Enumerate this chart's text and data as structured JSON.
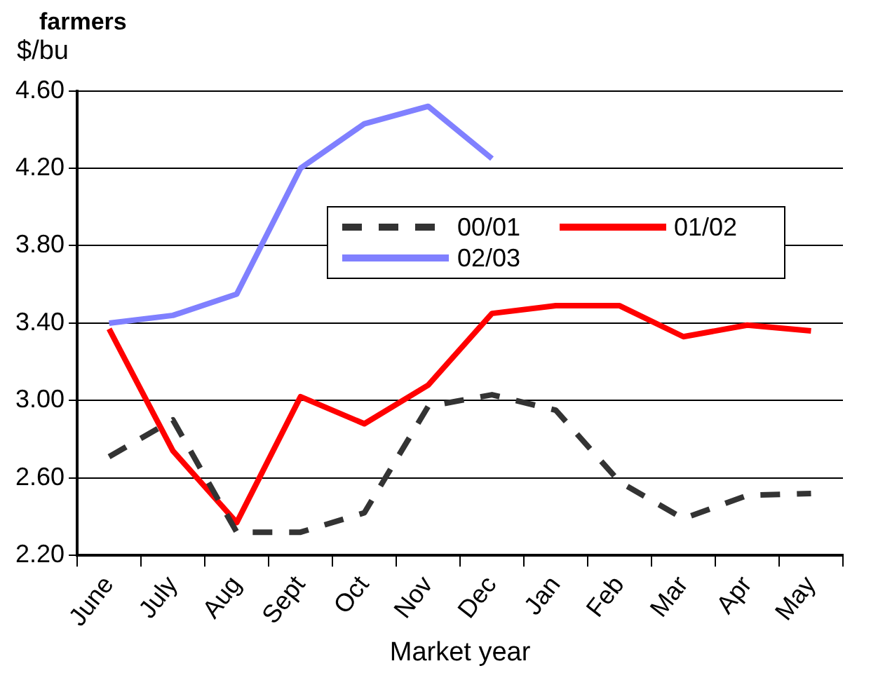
{
  "chart_data": {
    "type": "line",
    "title": "farmers",
    "ylabel": "$/bu",
    "xlabel": "Market year",
    "categories": [
      "June",
      "July",
      "Aug",
      "Sept",
      "Oct",
      "Nov",
      "Dec",
      "Jan",
      "Feb",
      "Mar",
      "Apr",
      "May"
    ],
    "series": [
      {
        "name": "00/01",
        "color": "#333333",
        "line_style": "dashed",
        "values": [
          2.71,
          2.9,
          2.32,
          2.32,
          2.42,
          2.97,
          3.03,
          2.95,
          2.58,
          2.39,
          2.51,
          2.52
        ]
      },
      {
        "name": "01/02",
        "color": "#ff0000",
        "line_style": "solid",
        "values": [
          3.37,
          2.74,
          2.37,
          3.02,
          2.88,
          3.08,
          3.45,
          3.49,
          3.49,
          3.33,
          3.39,
          3.36
        ]
      },
      {
        "name": "02/03",
        "color": "#8080ff",
        "line_style": "solid",
        "values": [
          3.4,
          3.44,
          3.55,
          4.2,
          4.43,
          4.52,
          4.25,
          null,
          null,
          null,
          null,
          null
        ]
      }
    ],
    "ylim": [
      2.2,
      4.6
    ],
    "yticks": [
      {
        "value": 2.2,
        "label": "2.20"
      },
      {
        "value": 2.6,
        "label": "2.60"
      },
      {
        "value": 3.0,
        "label": "3.00"
      },
      {
        "value": 3.4,
        "label": "3.40"
      },
      {
        "value": 3.8,
        "label": "3.80"
      },
      {
        "value": 4.2,
        "label": "4.20"
      },
      {
        "value": 4.6,
        "label": "4.60"
      }
    ],
    "grid": "y",
    "legend": "top",
    "marker": "none"
  }
}
